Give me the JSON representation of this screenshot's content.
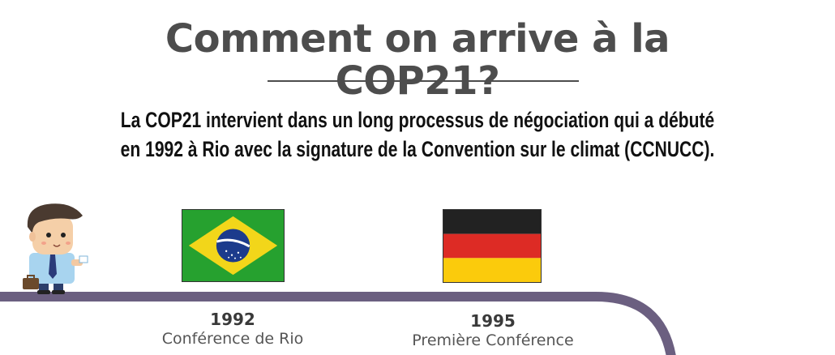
{
  "title": {
    "line1": "Comment on arrive à la",
    "line2": "COP21?"
  },
  "intro": {
    "text": "La COP21 intervient dans un long processus de négociation qui a débuté en 1992 à Rio avec la signature de la Convention sur le climat (CCNUCC)."
  },
  "flags": {
    "brazil": {
      "icon": "brazil-flag-icon",
      "colors": {
        "green": "#26a12f",
        "yellow": "#f2d61a",
        "blue": "#1c3b8c"
      }
    },
    "germany": {
      "icon": "germany-flag-icon",
      "colors": {
        "black": "#222222",
        "red": "#dd2b25",
        "gold": "#fbcb0c"
      }
    }
  },
  "timeline": {
    "color": "#6b5f80",
    "events": [
      {
        "year": "1992",
        "desc": "Conférence de Rio"
      },
      {
        "year": "1995",
        "desc": "Première Conférence"
      }
    ]
  },
  "character": {
    "icon": "businessman-icon"
  }
}
